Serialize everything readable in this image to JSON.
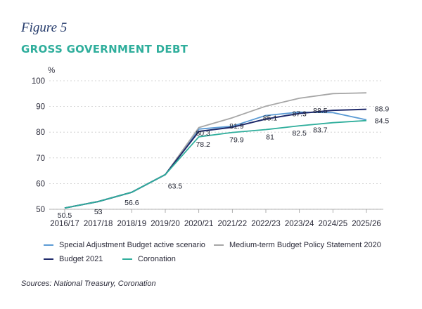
{
  "figure_label": "Figure 5",
  "figure_title": "GROSS GOVERNMENT DEBT",
  "source": "Sources: National Treasury, Coronation",
  "chart_data": {
    "type": "line",
    "title": "GROSS GOVERNMENT DEBT",
    "ylabel": "%",
    "xlabel": "",
    "ylim": [
      50,
      100
    ],
    "yticks": [
      50,
      60,
      70,
      80,
      90,
      100
    ],
    "grid": true,
    "legend_position": "bottom",
    "categories": [
      "2016/17",
      "2017/18",
      "2018/19",
      "2019/20",
      "2020/21",
      "2021/22",
      "2022/23",
      "2023/24",
      "2024/25",
      "2025/26"
    ],
    "series": [
      {
        "name": "Special Adjustment Budget active scenario",
        "color": "#5b9bd5",
        "values": [
          50.5,
          53,
          56.6,
          63.5,
          81.2,
          82.3,
          86.5,
          87.8,
          87.6,
          84.8
        ]
      },
      {
        "name": "Medium-term Budget Policy Statement 2020",
        "color": "#a6a6a6",
        "values": [
          50.5,
          53,
          56.6,
          63.5,
          81.8,
          85.6,
          90.1,
          93.2,
          95.0,
          95.3
        ]
      },
      {
        "name": "Budget 2021",
        "color": "#1f2a6b",
        "values": [
          50.5,
          53,
          56.6,
          63.5,
          80.3,
          81.9,
          85.1,
          87.3,
          88.5,
          88.9
        ]
      },
      {
        "name": "Coronation",
        "color": "#2fae9c",
        "values": [
          50.5,
          53,
          56.6,
          63.5,
          78.2,
          79.9,
          81,
          82.5,
          83.7,
          84.5
        ]
      }
    ],
    "data_labels": [
      {
        "category": "2016/17",
        "text": "50.5",
        "value": 50.5
      },
      {
        "category": "2017/18",
        "text": "53",
        "value": 53
      },
      {
        "category": "2018/19",
        "text": "56.6",
        "value": 56.6
      },
      {
        "category": "2019/20",
        "text": "63.5",
        "value": 63.5
      },
      {
        "category": "2020/21",
        "text": "80.3",
        "value": 80.3
      },
      {
        "category": "2020/21",
        "text": "78.2",
        "value": 78.2
      },
      {
        "category": "2021/22",
        "text": "81.9",
        "value": 81.9
      },
      {
        "category": "2021/22",
        "text": "79.9",
        "value": 79.9
      },
      {
        "category": "2022/23",
        "text": "85.1",
        "value": 85.1
      },
      {
        "category": "2022/23",
        "text": "81",
        "value": 81
      },
      {
        "category": "2023/24",
        "text": "87.3",
        "value": 87.3
      },
      {
        "category": "2023/24",
        "text": "82.5",
        "value": 82.5
      },
      {
        "category": "2024/25",
        "text": "88.5",
        "value": 88.5
      },
      {
        "category": "2024/25",
        "text": "83.7",
        "value": 83.7
      },
      {
        "category": "2025/26",
        "text": "88.9",
        "value": 88.9
      },
      {
        "category": "2025/26",
        "text": "84.5",
        "value": 84.5
      }
    ]
  }
}
